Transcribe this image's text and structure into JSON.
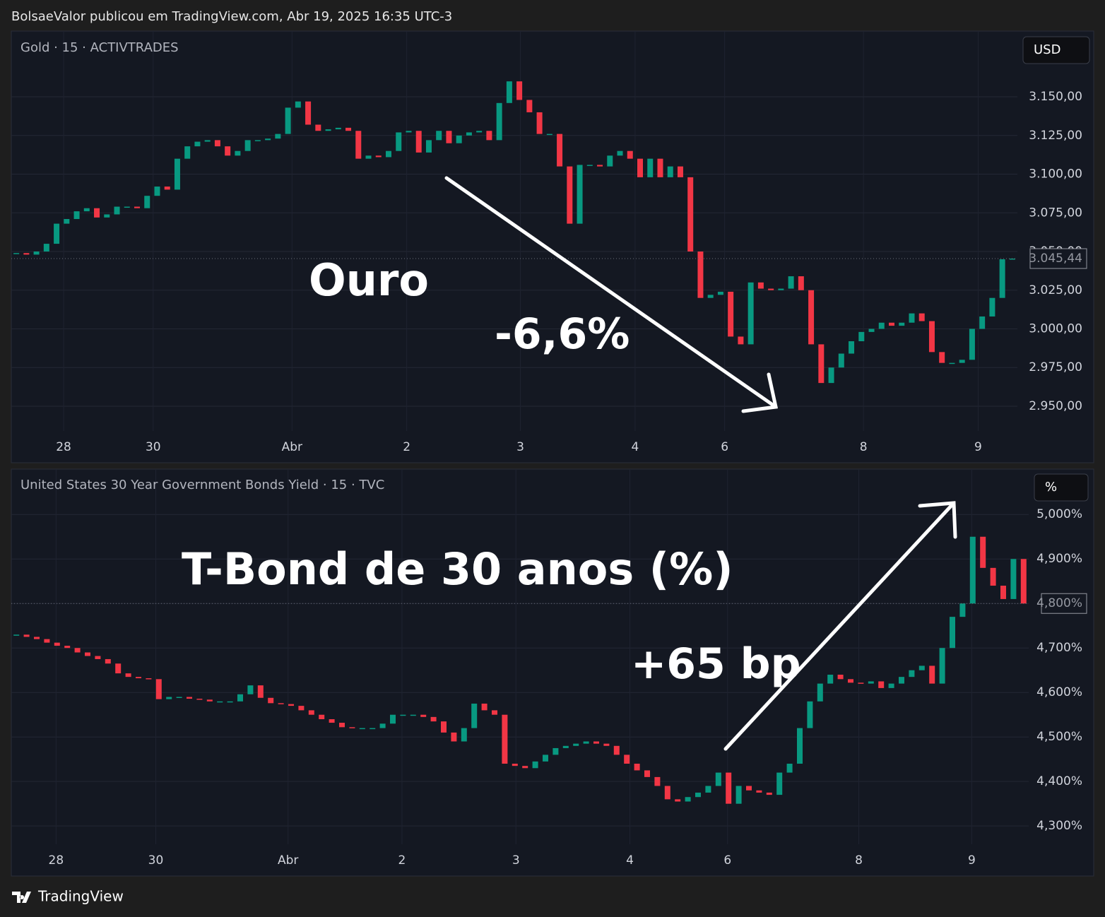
{
  "header": {
    "byline": "BolsaeValor publicou em TradingView.com, Abr 19, 2025 16:35 UTC-3",
    "brand": "TradingView"
  },
  "chart_data": [
    {
      "type": "candlestick",
      "title": "Gold · 15 · ACTIVTRADES",
      "unit_badge": "USD",
      "annotations": [
        "Ouro",
        "-6,6%"
      ],
      "up_color": "#089981",
      "down_color": "#f23645",
      "grid": true,
      "xlim": [
        0,
        100
      ],
      "x": [
        0.5,
        1.5,
        2.5,
        3.5,
        4.5,
        5.5,
        6.5,
        7.5,
        8.5,
        9.5,
        10.5,
        11.5,
        12.5,
        13.5,
        14.5,
        15.5,
        16.5,
        17.5,
        18.5,
        19.5,
        20.5,
        21.5,
        22.5,
        23.5,
        24.5,
        25.5,
        26.5,
        27.5,
        28.5,
        29.5,
        30.5,
        31.5,
        32.5,
        33.5,
        34.5,
        35.5,
        36.5,
        37.5,
        38.5,
        39.5,
        40.5,
        41.5,
        42.5,
        43.5,
        44.5,
        45.5,
        46.5,
        47.5,
        48.5,
        49.5,
        50.5,
        51.5,
        52.5,
        53.5,
        54.5,
        55.5,
        56.5,
        57.5,
        58.5,
        59.5,
        60.5,
        61.5,
        62.5,
        63.5,
        64.5,
        65.5,
        66.5,
        67.5,
        68.5,
        69.5,
        70.5,
        71.5,
        72.5,
        73.5,
        74.5,
        75.5,
        76.5,
        77.5,
        78.5,
        79.5,
        80.5,
        81.5,
        82.5,
        83.5,
        84.5,
        85.5,
        86.5,
        87.5,
        88.5,
        89.5,
        90.5,
        91.5,
        92.5,
        93.5,
        94.5,
        95.5,
        96.5,
        97.5,
        98.5,
        99.5
      ],
      "values": [
        3049,
        3048,
        3050,
        3055,
        3068,
        3071,
        3076,
        3078,
        3072,
        3074,
        3079,
        3079,
        3078,
        3086,
        3092,
        3090,
        3110,
        3118,
        3121,
        3122,
        3118,
        3112,
        3115,
        3122,
        3122,
        3123,
        3126,
        3143,
        3147,
        3132,
        3128,
        3129,
        3130,
        3128,
        3110,
        3112,
        3111,
        3115,
        3127,
        3128,
        3114,
        3122,
        3128,
        3120,
        3125,
        3127,
        3128,
        3122,
        3146,
        3160,
        3148,
        3140,
        3126,
        3126,
        3105,
        3068,
        3106,
        3106,
        3105,
        3112,
        3115,
        3110,
        3098,
        3110,
        3098,
        3105,
        3098,
        3050,
        3020,
        3022,
        3024,
        2995,
        2990,
        3030,
        3026,
        3025,
        3026,
        3034,
        3025,
        2990,
        2965,
        2975,
        2984,
        2992,
        2998,
        3000,
        3004,
        3002,
        3004,
        3010,
        3005,
        2985,
        2978,
        2978,
        2980,
        3000,
        3008,
        3020,
        3045,
        3045.44
      ],
      "last_label": {
        "value": 3045.44,
        "label": "3.045,44"
      },
      "xticks": [
        {
          "value": 5.2,
          "label": "28"
        },
        {
          "value": 14.1,
          "label": "30"
        },
        {
          "value": 27.9,
          "label": "Abr"
        },
        {
          "value": 39.3,
          "label": "2"
        },
        {
          "value": 50.6,
          "label": "3"
        },
        {
          "value": 62.0,
          "label": "4"
        },
        {
          "value": 70.9,
          "label": "6"
        },
        {
          "value": 84.7,
          "label": "8"
        },
        {
          "value": 96.1,
          "label": "9"
        }
      ],
      "ylim": [
        2934,
        3192.5
      ],
      "yticks": [
        {
          "value": 2950,
          "label": "2.950,00"
        },
        {
          "value": 2975,
          "label": "2.975,00"
        },
        {
          "value": 3000,
          "label": "3.000,00"
        },
        {
          "value": 3025,
          "label": "3.025,00"
        },
        {
          "value": 3050,
          "label": "3.050,00"
        },
        {
          "value": 3075,
          "label": "3.075,00"
        },
        {
          "value": 3100,
          "label": "3.100,00"
        },
        {
          "value": 3125,
          "label": "3.125,00"
        },
        {
          "value": 3150,
          "label": "3.150,00"
        }
      ]
    },
    {
      "type": "candlestick",
      "title": "United States 30 Year Government Bonds Yield · 15 · TVC",
      "unit_badge": "%",
      "annotations": [
        "T-Bond de 30 anos (%)",
        "+65 bp"
      ],
      "up_color": "#089981",
      "down_color": "#f23645",
      "grid": true,
      "xlim": [
        0,
        100
      ],
      "x": [
        0.5,
        1.5,
        2.5,
        3.5,
        4.5,
        5.5,
        6.5,
        7.5,
        8.5,
        9.5,
        10.5,
        11.5,
        12.5,
        13.5,
        14.5,
        15.5,
        16.5,
        17.5,
        18.5,
        19.5,
        20.5,
        21.5,
        22.5,
        23.5,
        24.5,
        25.5,
        26.5,
        27.5,
        28.5,
        29.5,
        30.5,
        31.5,
        32.5,
        33.5,
        34.5,
        35.5,
        36.5,
        37.5,
        38.5,
        39.5,
        40.5,
        41.5,
        42.5,
        43.5,
        44.5,
        45.5,
        46.5,
        47.5,
        48.5,
        49.5,
        50.5,
        51.5,
        52.5,
        53.5,
        54.5,
        55.5,
        56.5,
        57.5,
        58.5,
        59.5,
        60.5,
        61.5,
        62.5,
        63.5,
        64.5,
        65.5,
        66.5,
        67.5,
        68.5,
        69.5,
        70.5,
        71.5,
        72.5,
        73.5,
        74.5,
        75.5,
        76.5,
        77.5,
        78.5,
        79.5,
        80.5,
        81.5,
        82.5,
        83.5,
        84.5,
        85.5,
        86.5,
        87.5,
        88.5,
        89.5,
        90.5,
        91.5,
        92.5,
        93.5,
        94.5,
        95.5,
        96.5,
        97.5,
        98.5,
        99.5
      ],
      "values": [
        4.73,
        4.725,
        4.72,
        4.712,
        4.705,
        4.7,
        4.69,
        4.682,
        4.675,
        4.665,
        4.643,
        4.635,
        4.632,
        4.63,
        4.585,
        4.59,
        4.59,
        4.586,
        4.584,
        4.58,
        4.58,
        4.58,
        4.596,
        4.616,
        4.588,
        4.576,
        4.574,
        4.57,
        4.56,
        4.55,
        4.54,
        4.532,
        4.522,
        4.52,
        4.52,
        4.52,
        4.53,
        4.55,
        4.55,
        4.55,
        4.545,
        4.535,
        4.51,
        4.49,
        4.52,
        4.575,
        4.56,
        4.55,
        4.44,
        4.435,
        4.43,
        4.445,
        4.46,
        4.475,
        4.48,
        4.485,
        4.49,
        4.485,
        4.48,
        4.46,
        4.44,
        4.425,
        4.41,
        4.39,
        4.36,
        4.355,
        4.365,
        4.375,
        4.39,
        4.42,
        4.35,
        4.39,
        4.38,
        4.375,
        4.37,
        4.42,
        4.44,
        4.52,
        4.58,
        4.62,
        4.64,
        4.63,
        4.622,
        4.62,
        4.625,
        4.61,
        4.62,
        4.635,
        4.65,
        4.66,
        4.62,
        4.7,
        4.77,
        4.8,
        4.95,
        4.88,
        4.84,
        4.81,
        4.9,
        4.8
      ],
      "last_label": {
        "value": 4.8,
        "label": "4,800%"
      },
      "xticks": [
        {
          "value": 4.4,
          "label": "28"
        },
        {
          "value": 14.2,
          "label": "30"
        },
        {
          "value": 27.2,
          "label": "Abr"
        },
        {
          "value": 38.4,
          "label": "2"
        },
        {
          "value": 49.6,
          "label": "3"
        },
        {
          "value": 60.8,
          "label": "4"
        },
        {
          "value": 70.4,
          "label": "6"
        },
        {
          "value": 83.3,
          "label": "8"
        },
        {
          "value": 94.4,
          "label": "9"
        }
      ],
      "ylim": [
        4.259,
        5.102
      ],
      "yticks": [
        {
          "value": 4.3,
          "label": "4,300%"
        },
        {
          "value": 4.4,
          "label": "4,400%"
        },
        {
          "value": 4.5,
          "label": "4,500%"
        },
        {
          "value": 4.6,
          "label": "4,600%"
        },
        {
          "value": 4.7,
          "label": "4,700%"
        },
        {
          "value": 4.8,
          "label": "4,800%"
        },
        {
          "value": 4.9,
          "label": "4,900%"
        },
        {
          "value": 5.0,
          "label": "5,000%"
        }
      ]
    }
  ]
}
